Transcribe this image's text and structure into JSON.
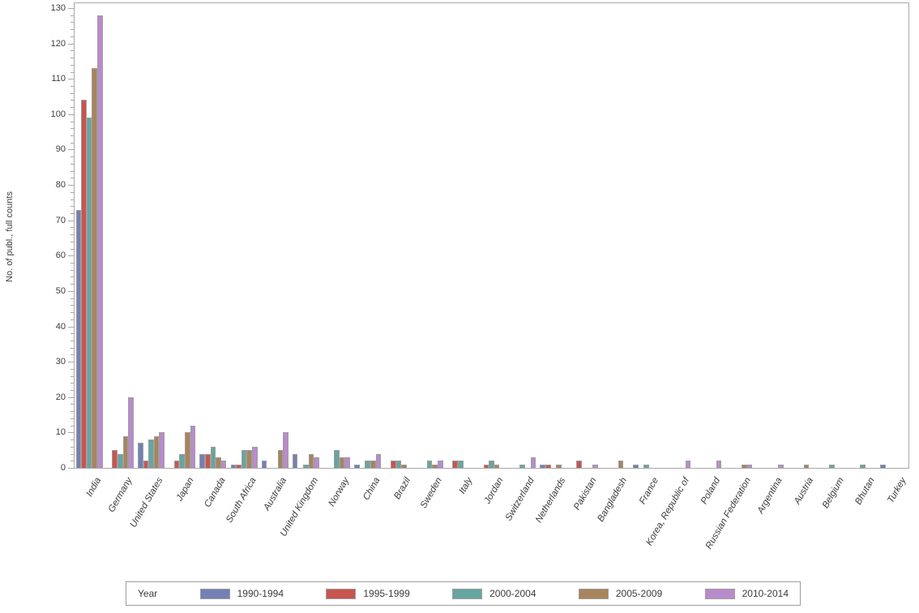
{
  "chart_data": {
    "type": "bar",
    "title": "",
    "xlabel": "",
    "ylabel": "No. of publ., full counts",
    "ylim": [
      0,
      130
    ],
    "yticks": [
      0,
      10,
      20,
      30,
      40,
      50,
      60,
      70,
      80,
      90,
      100,
      110,
      120,
      130
    ],
    "ytick_minor_interval": 2,
    "grid": false,
    "legend_position": "bottom",
    "legend_title": "Year",
    "categories": [
      "India",
      "Germany",
      "United States",
      "Japan",
      "Canada",
      "South Africa",
      "Australia",
      "United Kingdom",
      "Norway",
      "China",
      "Brazil",
      "Sweden",
      "Italy",
      "Jordan",
      "Switzerland",
      "Netherlands",
      "Pakistan",
      "Bangladesh",
      "France",
      "Korea, Republic of",
      "Poland",
      "Russian Federation",
      "Argentina",
      "Austria",
      "Belgium",
      "Bhutan",
      "Turkey"
    ],
    "series": [
      {
        "name": "1990-1994",
        "color": "#7280b4",
        "values": [
          73,
          0,
          7,
          0,
          4,
          1,
          2,
          4,
          0,
          1,
          0,
          0,
          0,
          0,
          0,
          1,
          0,
          0,
          1,
          0,
          0,
          0,
          0,
          0,
          0,
          0,
          1
        ]
      },
      {
        "name": "1995-1999",
        "color": "#c8554f",
        "values": [
          104,
          5,
          2,
          2,
          4,
          1,
          0,
          0,
          0,
          0,
          2,
          0,
          2,
          1,
          0,
          1,
          2,
          0,
          0,
          0,
          0,
          0,
          0,
          0,
          0,
          0,
          0
        ]
      },
      {
        "name": "2000-2004",
        "color": "#66a5a0",
        "values": [
          99,
          4,
          8,
          4,
          6,
          5,
          0,
          1,
          5,
          2,
          2,
          2,
          2,
          2,
          1,
          0,
          0,
          0,
          1,
          0,
          0,
          0,
          0,
          0,
          1,
          1,
          0
        ]
      },
      {
        "name": "2005-2009",
        "color": "#a8845c",
        "values": [
          113,
          9,
          9,
          10,
          3,
          5,
          5,
          4,
          3,
          2,
          1,
          1,
          0,
          1,
          0,
          1,
          0,
          2,
          0,
          0,
          0,
          1,
          0,
          1,
          0,
          0,
          0
        ]
      },
      {
        "name": "2010-2014",
        "color": "#b98bcb",
        "values": [
          128,
          20,
          10,
          12,
          2,
          6,
          10,
          3,
          3,
          4,
          0,
          2,
          0,
          0,
          3,
          0,
          1,
          0,
          0,
          2,
          2,
          1,
          1,
          0,
          0,
          0,
          0
        ]
      }
    ],
    "colors": {
      "bar_border": "#9e9e9e",
      "axis": "#a8a8a8",
      "text": "#3c3c3c",
      "background": "#ffffff"
    }
  }
}
